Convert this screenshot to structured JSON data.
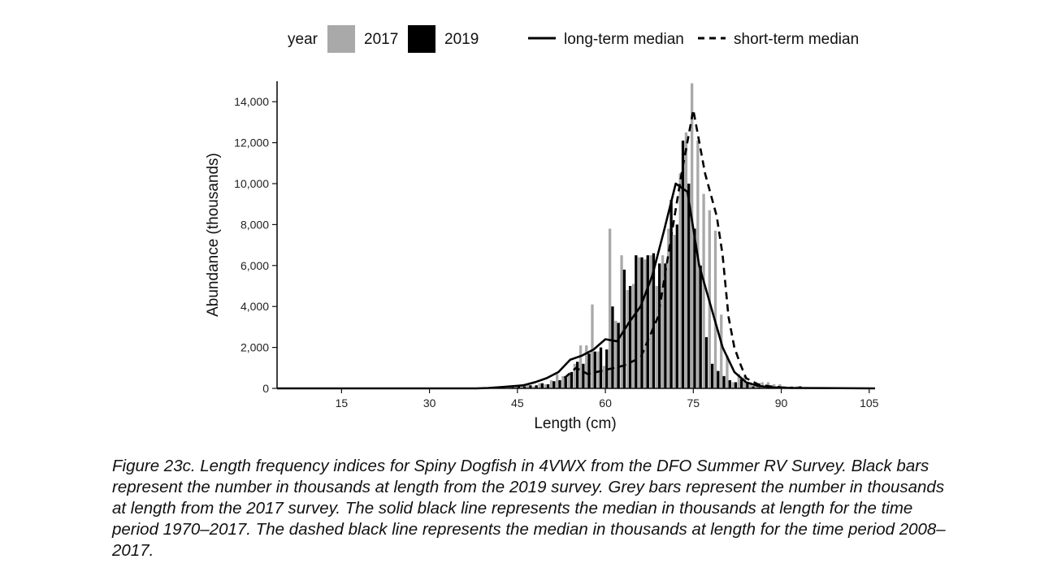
{
  "legend": {
    "fill_title": "year",
    "series_2017_label": "2017",
    "series_2019_label": "2019",
    "long_term_label": "long-term median",
    "short_term_label": "short-term median"
  },
  "caption": "Figure 23c. Length frequency indices for Spiny Dogfish in 4VWX from the DFO Summer RV Survey. Black bars represent the number in thousands at length from the 2019 survey. Grey bars represent the number in thousands at length from the 2017 survey. The solid black line represents the median in thousands at length for the time period 1970–2017. The dashed black line represents the median in thousands at length for the time period 2008–2017.",
  "colors": {
    "bar_2017": "#a9a9a9",
    "bar_2019": "#000000",
    "lines": "#000000"
  },
  "chart_data": {
    "type": "bar",
    "xlabel": "Length (cm)",
    "ylabel": "Abundance (thousands)",
    "xlim": [
      4,
      106
    ],
    "ylim": [
      0,
      15000
    ],
    "x_ticks": [
      15,
      30,
      45,
      60,
      75,
      90,
      105
    ],
    "y_ticks": [
      0,
      2000,
      4000,
      6000,
      8000,
      10000,
      12000,
      14000
    ],
    "y_tick_labels": [
      "0",
      "2,000",
      "4,000",
      "6,000",
      "8,000",
      "10,000",
      "12,000",
      "14,000"
    ],
    "grid": false,
    "legend_position": "top",
    "x": [
      40,
      41,
      42,
      43,
      44,
      45,
      46,
      47,
      48,
      49,
      50,
      51,
      52,
      53,
      54,
      55,
      56,
      57,
      58,
      59,
      60,
      61,
      62,
      63,
      64,
      65,
      66,
      67,
      68,
      69,
      70,
      71,
      72,
      73,
      74,
      75,
      76,
      77,
      78,
      79,
      80,
      81,
      82,
      83,
      84,
      85,
      86,
      87,
      88,
      89,
      90,
      91,
      92,
      93,
      94,
      95,
      96,
      97,
      98,
      99,
      100
    ],
    "series": [
      {
        "name": "2017",
        "kind": "bar",
        "values": [
          0,
          0,
          0,
          0,
          50,
          100,
          100,
          150,
          100,
          250,
          200,
          400,
          700,
          600,
          700,
          1200,
          2100,
          2100,
          4100,
          1800,
          1100,
          7800,
          3300,
          6500,
          4800,
          5100,
          6400,
          6300,
          6500,
          5000,
          6500,
          7800,
          7500,
          10500,
          12500,
          14900,
          12100,
          9500,
          8700,
          7700,
          3600,
          1600,
          300,
          700,
          600,
          300,
          200,
          300,
          300,
          200,
          200,
          100,
          100,
          100,
          50,
          0,
          0,
          0,
          50,
          0,
          0
        ]
      },
      {
        "name": "2019",
        "kind": "bar",
        "values": [
          0,
          0,
          0,
          0,
          50,
          150,
          100,
          150,
          150,
          250,
          200,
          350,
          400,
          600,
          800,
          1300,
          1200,
          1700,
          1800,
          2000,
          1900,
          4000,
          3200,
          5800,
          5000,
          6500,
          6400,
          6500,
          6600,
          6100,
          6100,
          9200,
          8000,
          12100,
          10000,
          7800,
          6000,
          2500,
          1200,
          850,
          600,
          400,
          300,
          450,
          300,
          100,
          50,
          0,
          0,
          0,
          0,
          0,
          0,
          100,
          0,
          0,
          0,
          0,
          0,
          0,
          0
        ]
      },
      {
        "name": "long-term median",
        "kind": "line",
        "style": "solid",
        "x": [
          4,
          38,
          40,
          42,
          44,
          46,
          48,
          50,
          52,
          54,
          56,
          58,
          60,
          62,
          64,
          66,
          68,
          70,
          72,
          74,
          76,
          78,
          80,
          82,
          84,
          86,
          88,
          90,
          92,
          100,
          106
        ],
        "values": [
          0,
          0,
          20,
          60,
          100,
          150,
          300,
          500,
          800,
          1400,
          1600,
          1900,
          2400,
          2300,
          3200,
          4000,
          5500,
          7700,
          10000,
          9600,
          6000,
          4000,
          2000,
          800,
          300,
          120,
          60,
          30,
          20,
          10,
          0
        ]
      },
      {
        "name": "short-term median",
        "kind": "line",
        "style": "dashed",
        "x": [
          53,
          55,
          57,
          60,
          63,
          66,
          69,
          71,
          73,
          75,
          77,
          79,
          80,
          81,
          82,
          83,
          84,
          86,
          88,
          90,
          92
        ],
        "values": [
          500,
          1000,
          700,
          900,
          1100,
          1500,
          3500,
          7000,
          10500,
          13600,
          10500,
          8400,
          6500,
          3500,
          2000,
          1200,
          500,
          200,
          100,
          50,
          20
        ]
      }
    ]
  }
}
